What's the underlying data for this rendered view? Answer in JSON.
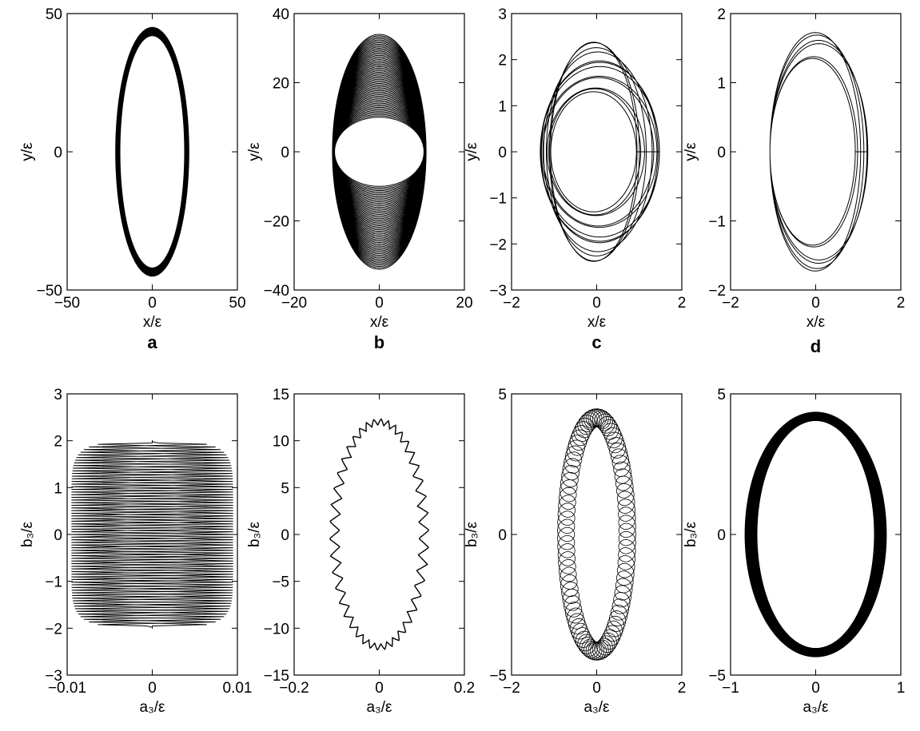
{
  "figure": {
    "panel_letters": [
      "a",
      "b",
      "c",
      "d"
    ]
  },
  "chart_data": [
    {
      "id": "a",
      "type": "line",
      "row": 0,
      "letter": "a",
      "xlabel": "x/ε",
      "ylabel": "y/ε",
      "xlim": [
        -50,
        50
      ],
      "ylim": [
        -50,
        50
      ],
      "xticks": [
        "−50",
        "0",
        "50"
      ],
      "yticks": [
        "−50",
        "0",
        "50"
      ],
      "xtick_values": [
        -50,
        0,
        50
      ],
      "ytick_values": [
        -50,
        0,
        50
      ],
      "shape": {
        "kind": "ellipse-band",
        "ax_min": 19,
        "ax_max": 21.5,
        "by_min": 42,
        "by_max": 45,
        "loops": 40
      }
    },
    {
      "id": "b",
      "type": "line",
      "row": 0,
      "letter": "b",
      "xlabel": "x/ε",
      "ylabel": "y/ε",
      "xlim": [
        -20,
        20
      ],
      "ylim": [
        -40,
        40
      ],
      "xticks": [
        "−20",
        "0",
        "20"
      ],
      "yticks": [
        "−40",
        "−20",
        "0",
        "20",
        "40"
      ],
      "xtick_values": [
        -20,
        0,
        20
      ],
      "ytick_values": [
        -40,
        -20,
        0,
        20,
        40
      ],
      "shape": {
        "kind": "ellipse-band",
        "ax_min": 10.5,
        "ax_max": 11,
        "by_min": 10,
        "by_max": 34,
        "loops": 60
      }
    },
    {
      "id": "c",
      "type": "line",
      "row": 0,
      "letter": "c",
      "xlabel": "x/ε",
      "ylabel": "y/ε",
      "xlim": [
        -2,
        2
      ],
      "ylim": [
        -3,
        3
      ],
      "xticks": [
        "−2",
        "0",
        "2"
      ],
      "yticks": [
        "−3",
        "−2",
        "−1",
        "0",
        "1",
        "2",
        "3"
      ],
      "xtick_values": [
        -2,
        0,
        2
      ],
      "ytick_values": [
        -3,
        -2,
        -1,
        0,
        1,
        2,
        3
      ],
      "shape": {
        "kind": "wobble-loops",
        "loops": 12,
        "ax_min": 1.0,
        "ax_max": 1.4,
        "by_min": 1.3,
        "by_max": 2.4
      }
    },
    {
      "id": "d",
      "type": "line",
      "row": 0,
      "letter": "d",
      "xlabel": "x/ε",
      "ylabel": "y/ε",
      "xlim": [
        -2,
        2
      ],
      "ylim": [
        -2,
        2
      ],
      "xticks": [
        "−2",
        "0",
        "2"
      ],
      "yticks": [
        "−2",
        "−1",
        "0",
        "1",
        "2"
      ],
      "xtick_values": [
        -2,
        0,
        2
      ],
      "ytick_values": [
        -2,
        -1,
        0,
        1,
        2
      ],
      "shape": {
        "kind": "wobble-loops",
        "loops": 6,
        "ax_min": 1.0,
        "ax_max": 1.15,
        "by_min": 1.35,
        "by_max": 1.78
      }
    },
    {
      "id": "e",
      "type": "line",
      "row": 1,
      "letter": "",
      "xlabel": "a₃/ε",
      "ylabel": "b₃/ε",
      "xlim": [
        -0.01,
        0.01
      ],
      "ylim": [
        -3,
        3
      ],
      "xticks": [
        "−0.01",
        "0",
        "0.01"
      ],
      "yticks": [
        "−3",
        "−2",
        "−1",
        "0",
        "1",
        "2",
        "3"
      ],
      "xtick_values": [
        -0.01,
        0,
        0.01
      ],
      "ytick_values": [
        -3,
        -2,
        -1,
        0,
        1,
        2,
        3
      ],
      "shape": {
        "kind": "zigzag-band",
        "ax_inner": 0.003,
        "ax_outer": 0.0095,
        "by": 1.98,
        "teeth": 70
      }
    },
    {
      "id": "f",
      "type": "line",
      "row": 1,
      "letter": "",
      "xlabel": "a₃/ε",
      "ylabel": "b₃/ε",
      "xlim": [
        -0.2,
        0.2
      ],
      "ylim": [
        -15,
        15
      ],
      "xticks": [
        "−0.2",
        "0",
        "0.2"
      ],
      "yticks": [
        "−15",
        "−10",
        "−5",
        "0",
        "5",
        "10",
        "15"
      ],
      "xtick_values": [
        -0.2,
        0,
        0.2
      ],
      "ytick_values": [
        -15,
        -10,
        -5,
        0,
        5,
        10,
        15
      ],
      "shape": {
        "kind": "jagged-ellipse",
        "ax": 0.105,
        "by": 12,
        "amp": 0.012,
        "teeth": 42
      }
    },
    {
      "id": "g",
      "type": "line",
      "row": 1,
      "letter": "",
      "xlabel": "a₃/ε",
      "ylabel": "b₃/ε",
      "xlim": [
        -2,
        2
      ],
      "ylim": [
        -5,
        5
      ],
      "xticks": [
        "−2",
        "0",
        "2"
      ],
      "yticks": [
        "−5",
        "0",
        "5"
      ],
      "xtick_values": [
        -2,
        0,
        2
      ],
      "ytick_values": [
        -5,
        0,
        5
      ],
      "shape": {
        "kind": "epicycle-band",
        "ax": 0.72,
        "by": 4.15,
        "r": 0.2,
        "loops": 90
      }
    },
    {
      "id": "h",
      "type": "line",
      "row": 1,
      "letter": "",
      "xlabel": "a₃/ε",
      "ylabel": "b₃/ε",
      "xlim": [
        -1,
        1
      ],
      "ylim": [
        -5,
        5
      ],
      "xticks": [
        "−1",
        "0",
        "1"
      ],
      "yticks": [
        "−5",
        "0",
        "5"
      ],
      "xtick_values": [
        -1,
        0,
        1
      ],
      "ytick_values": [
        -5,
        0,
        5
      ],
      "shape": {
        "kind": "ellipse-band",
        "ax_min": 0.69,
        "ax_max": 0.83,
        "by_min": 4.05,
        "by_max": 4.35,
        "loops": 30
      }
    }
  ]
}
